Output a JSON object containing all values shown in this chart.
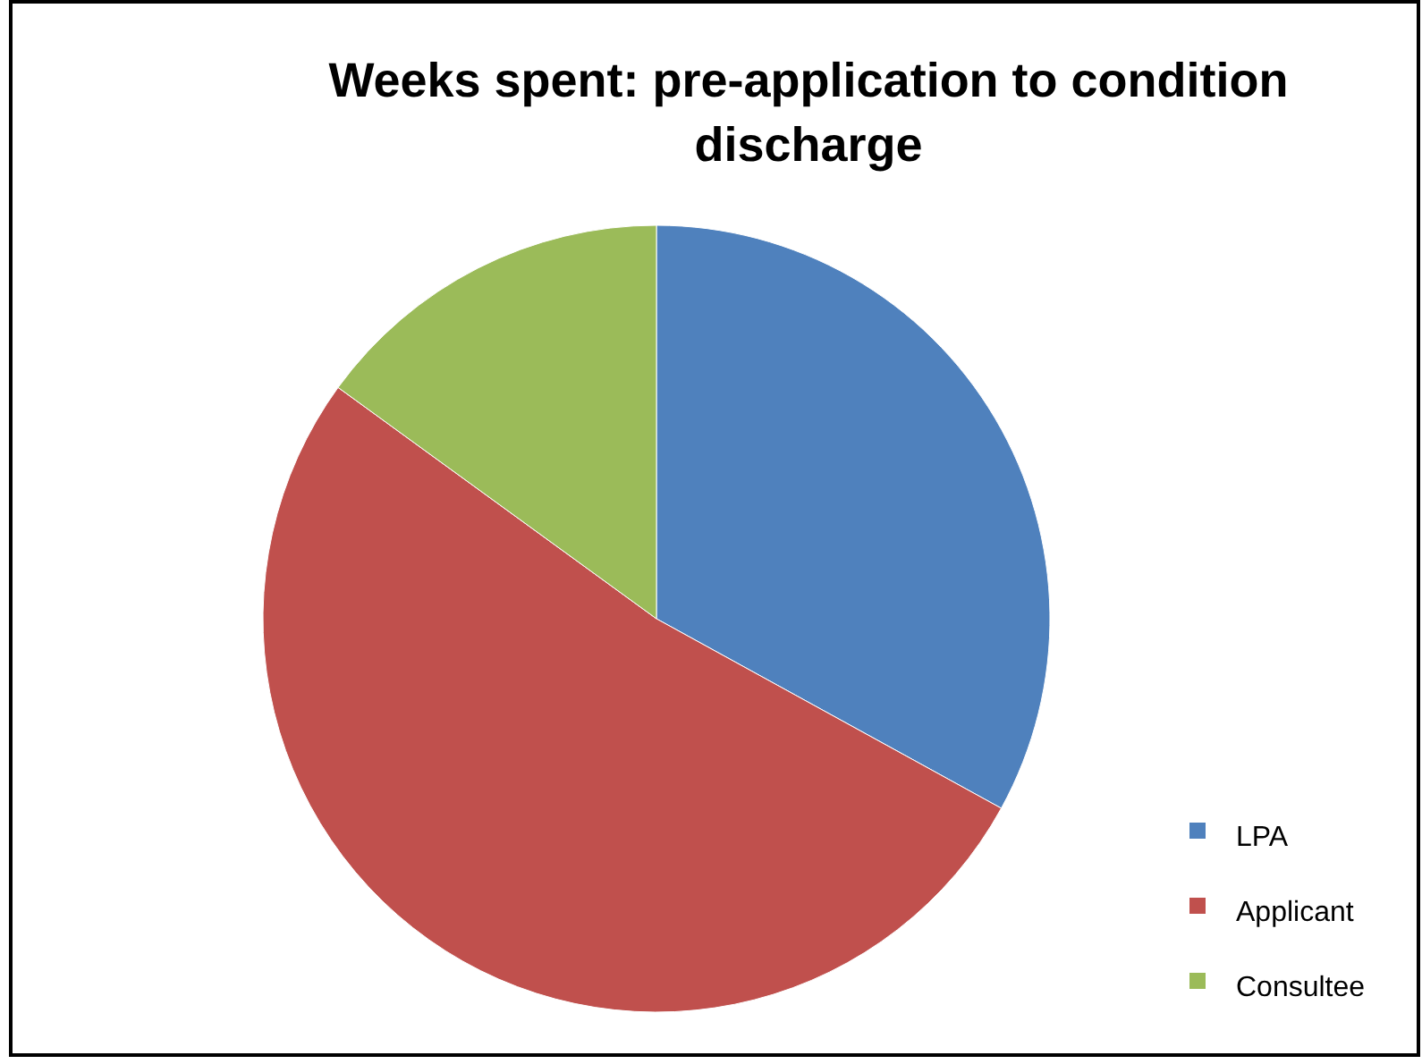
{
  "chart_data": {
    "type": "pie",
    "title": "Weeks spent: pre-application to condition discharge",
    "categories": [
      "LPA",
      "Applicant",
      "Consultee"
    ],
    "values": [
      33,
      52,
      15
    ],
    "colors": [
      "#4f81bd",
      "#c0504d",
      "#9bbb59"
    ],
    "legend": "right"
  }
}
